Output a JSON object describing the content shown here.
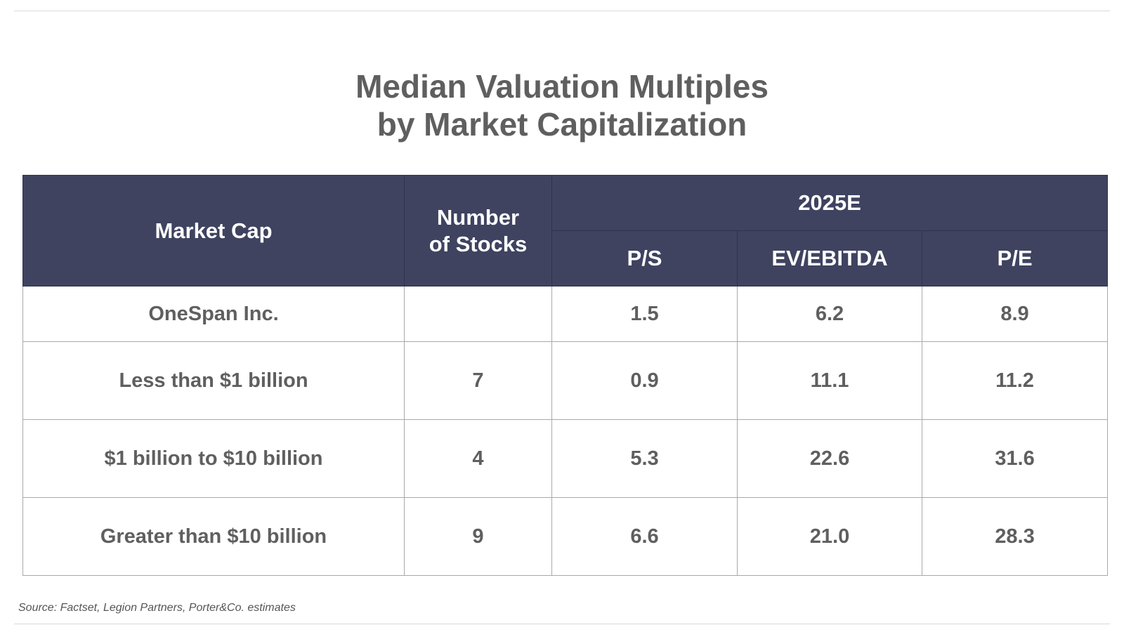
{
  "title": {
    "line1": "Median Valuation Multiples",
    "line2": "by Market Capitalization"
  },
  "colors": {
    "header_background": "#3f4360",
    "header_text": "#ffffff",
    "body_text": "#5f5f5f",
    "grid_lines": "#a9a9a9"
  },
  "chart_data": {
    "type": "table",
    "header": {
      "market_cap": "Market Cap",
      "number_of_stocks_line1": "Number",
      "number_of_stocks_line2": "of Stocks",
      "group": "2025E",
      "metrics": [
        "P/S",
        "EV/EBITDA",
        "P/E"
      ]
    },
    "rows": [
      {
        "market_cap": "OneSpan Inc.",
        "number_of_stocks": "",
        "ps": "1.5",
        "ev_ebitda": "6.2",
        "pe": "8.9"
      },
      {
        "market_cap": "Less than $1 billion",
        "number_of_stocks": "7",
        "ps": "0.9",
        "ev_ebitda": "11.1",
        "pe": "11.2"
      },
      {
        "market_cap": "$1 billion to $10 billion",
        "number_of_stocks": "4",
        "ps": "5.3",
        "ev_ebitda": "22.6",
        "pe": "31.6"
      },
      {
        "market_cap": "Greater than $10 billion",
        "number_of_stocks": "9",
        "ps": "6.6",
        "ev_ebitda": "21.0",
        "pe": "28.3"
      }
    ]
  },
  "source": "Source: Factset, Legion Partners, Porter&Co. estimates"
}
